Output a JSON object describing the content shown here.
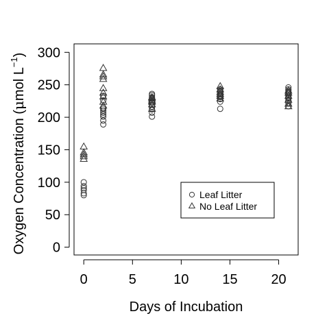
{
  "chart_data": {
    "type": "scatter",
    "xlabel": "Days of Incubation",
    "ylabel_main": "Oxygen Concentration (",
    "ylabel_mu": "μ",
    "ylabel_unit": "mol L",
    "ylabel_exp": "−1",
    "ylabel_close": ")",
    "xlim": [
      -1,
      22
    ],
    "ylim": [
      -12,
      313
    ],
    "x_ticks": [
      0,
      5,
      10,
      15,
      20
    ],
    "y_ticks": [
      0,
      50,
      100,
      150,
      200,
      250,
      300
    ],
    "grid": false,
    "legend_position": "bottom-right",
    "series": [
      {
        "name": "Leaf Litter",
        "marker": "circle",
        "color": "#333333",
        "x": [
          0,
          0,
          0,
          0,
          0,
          0,
          2,
          2,
          2,
          2,
          2,
          2,
          2,
          2,
          2,
          2,
          7,
          7,
          7,
          7,
          7,
          7,
          7,
          7,
          7,
          7,
          7,
          7,
          14,
          14,
          14,
          14,
          14,
          14,
          14,
          14,
          14,
          14,
          21,
          21,
          21,
          21,
          21,
          21,
          21,
          21,
          21,
          21,
          21,
          21
        ],
        "y": [
          80,
          83,
          88,
          91,
          94,
          100,
          189,
          195,
          201,
          204,
          207,
          210,
          213,
          215,
          226,
          233,
          201,
          207,
          212,
          216,
          219,
          222,
          224,
          226,
          229,
          231,
          234,
          236,
          213,
          224,
          228,
          231,
          233,
          235,
          237,
          239,
          241,
          243,
          217,
          222,
          226,
          229,
          231,
          233,
          235,
          237,
          239,
          241,
          243,
          246
        ]
      },
      {
        "name": "No Leaf Litter",
        "marker": "triangle",
        "color": "#333333",
        "x": [
          0,
          0,
          0,
          0,
          0,
          2,
          2,
          2,
          2,
          2,
          2,
          2,
          2,
          2,
          7,
          7,
          7,
          7,
          7,
          7,
          14,
          14,
          14,
          14,
          14,
          14,
          21,
          21,
          21,
          21,
          21,
          21
        ],
        "y": [
          136,
          140,
          143,
          146,
          155,
          218,
          224,
          232,
          238,
          245,
          259,
          263,
          266,
          276,
          213,
          220,
          224,
          226,
          229,
          231,
          229,
          233,
          236,
          239,
          243,
          248,
          217,
          221,
          227,
          233,
          238,
          241
        ]
      }
    ]
  }
}
